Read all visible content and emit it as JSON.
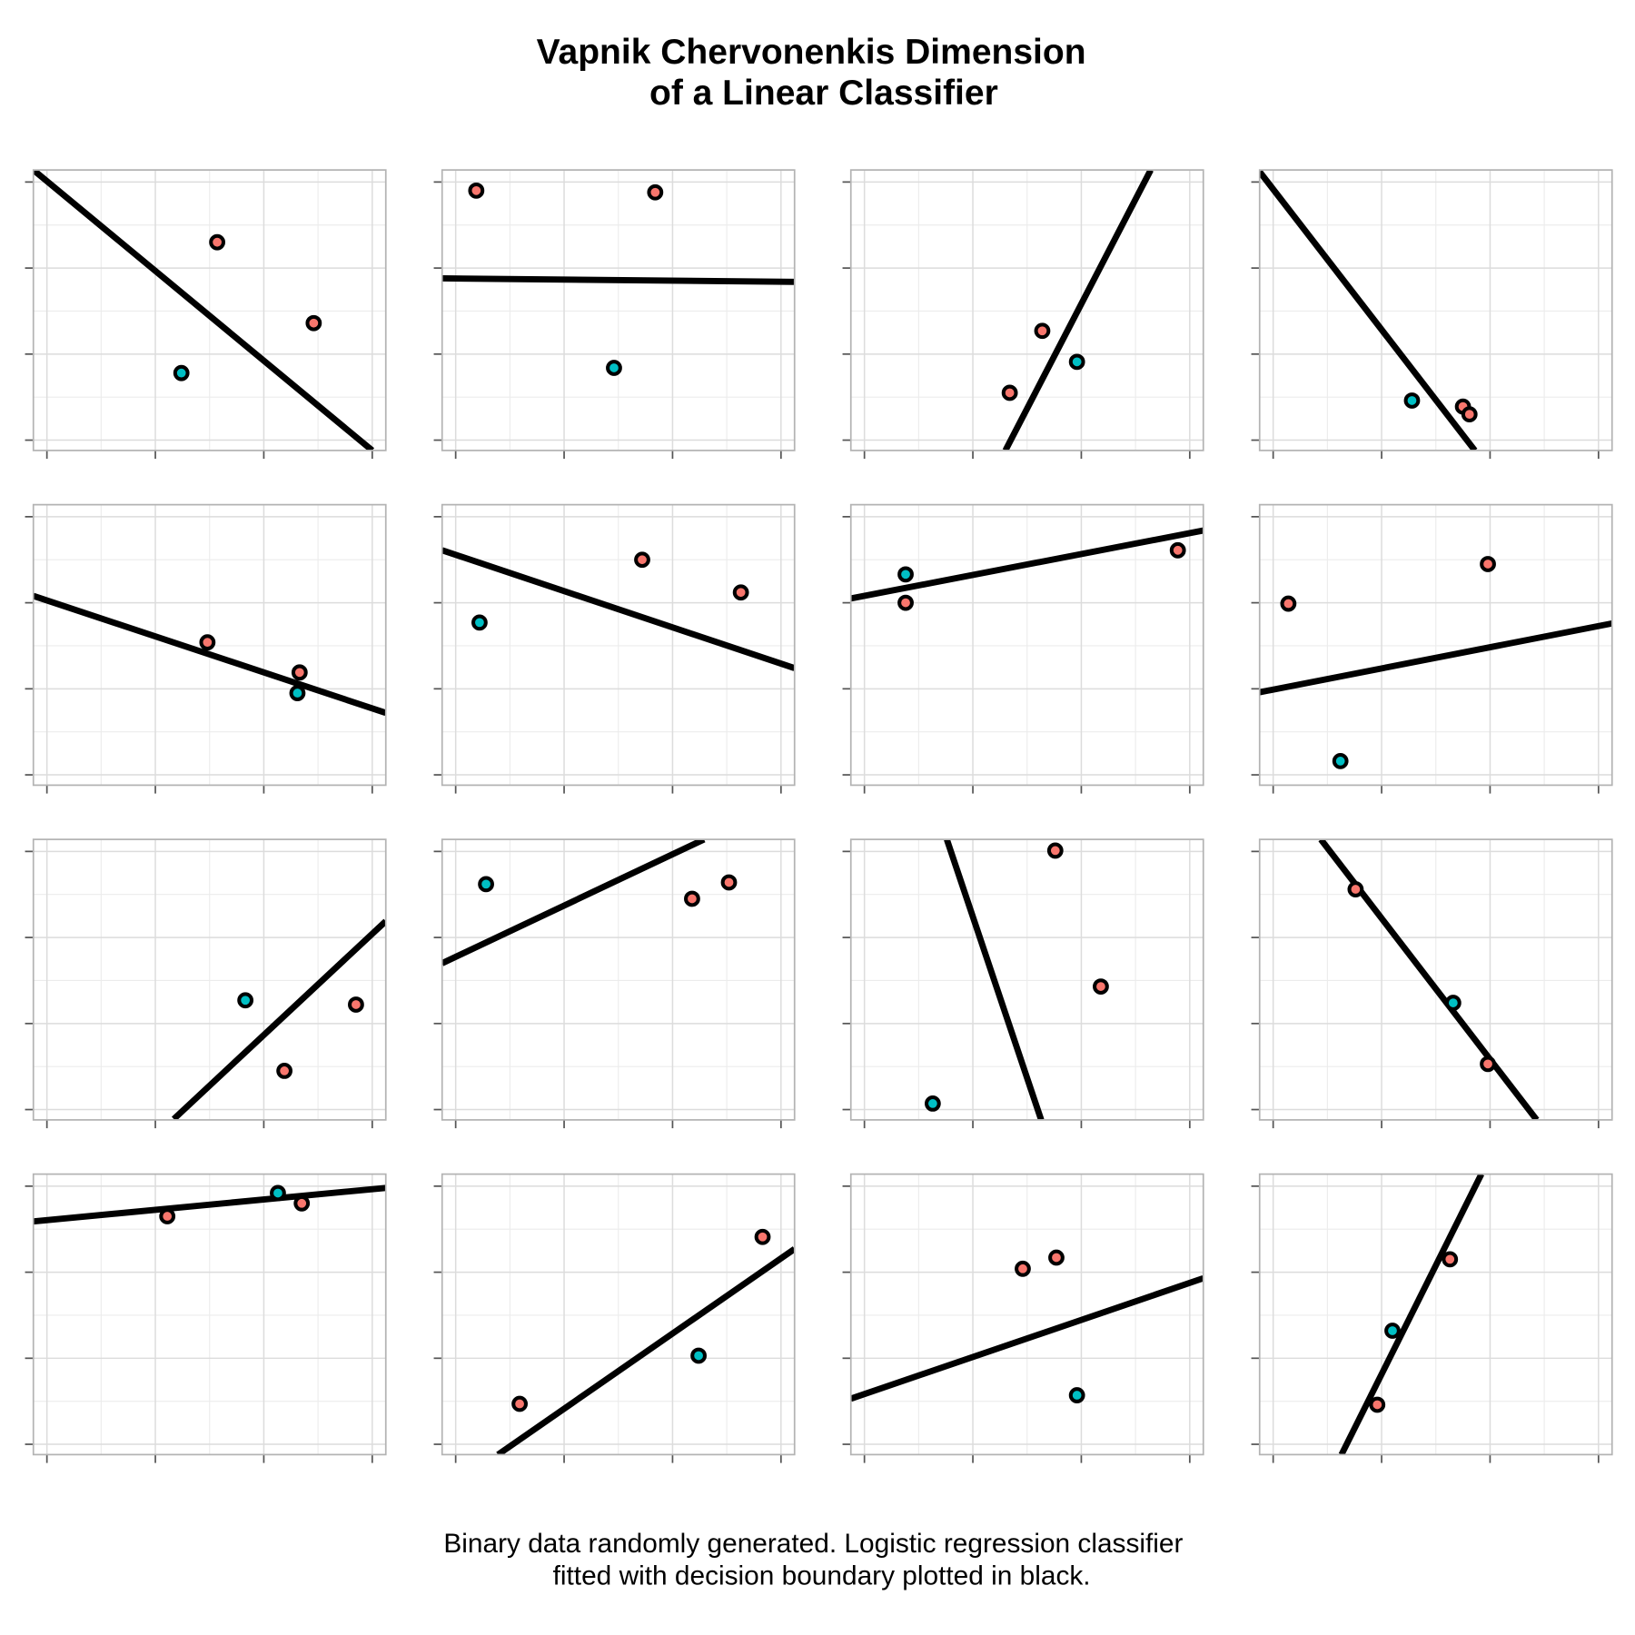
{
  "title": [
    "Vapnik Chervonenkis Dimension",
    "of a Linear Classifier"
  ],
  "caption": [
    "Binary data randomly generated. Logistic regression classifier",
    "fitted with decision boundary plotted in black."
  ],
  "chart_data": [
    {
      "type": "scatter",
      "x": [
        1.57,
        2.46,
        1.24
      ],
      "y": [
        2.3,
        1.36,
        0.78
      ],
      "colors": [
        "#f8766d",
        "#f8766d",
        "#00bfc4"
      ],
      "boundary": {
        "x": [
          -0.125,
          3.0
        ],
        "y": [
          3.14,
          -0.12
        ]
      },
      "xlim": [
        -0.125,
        3.125
      ],
      "ylim": [
        -0.12,
        3.14
      ],
      "xticks": [
        0,
        1,
        2,
        3
      ],
      "yticks": [
        0,
        1,
        2,
        3
      ],
      "grid": true
    },
    {
      "type": "scatter",
      "x": [
        0.19,
        1.84,
        1.46
      ],
      "y": [
        2.9,
        2.88,
        0.84
      ],
      "colors": [
        "#f8766d",
        "#f8766d",
        "#00bfc4"
      ],
      "boundary": {
        "x": [
          -0.125,
          3.125
        ],
        "y": [
          1.88,
          1.84
        ]
      },
      "xlim": [
        -0.125,
        3.125
      ],
      "ylim": [
        -0.12,
        3.14
      ],
      "xticks": [
        0,
        1,
        2,
        3
      ],
      "yticks": [
        0,
        1,
        2,
        3
      ],
      "grid": true
    },
    {
      "type": "scatter",
      "x": [
        1.64,
        1.34,
        1.96
      ],
      "y": [
        1.27,
        0.55,
        0.91
      ],
      "colors": [
        "#f8766d",
        "#f8766d",
        "#00bfc4"
      ],
      "boundary": {
        "x": [
          1.3,
          2.64
        ],
        "y": [
          -0.12,
          3.14
        ]
      },
      "xlim": [
        -0.125,
        3.125
      ],
      "ylim": [
        -0.12,
        3.14
      ],
      "xticks": [
        0,
        1,
        2,
        3
      ],
      "yticks": [
        0,
        1,
        2,
        3
      ],
      "grid": true
    },
    {
      "type": "scatter",
      "x": [
        1.28,
        1.75,
        1.81
      ],
      "y": [
        0.46,
        0.39,
        0.3
      ],
      "colors": [
        "#00bfc4",
        "#f8766d",
        "#f8766d"
      ],
      "boundary": {
        "x": [
          -0.125,
          1.86
        ],
        "y": [
          3.12,
          -0.12
        ]
      },
      "xlim": [
        -0.125,
        3.125
      ],
      "ylim": [
        -0.12,
        3.14
      ],
      "xticks": [
        0,
        1,
        2,
        3
      ],
      "yticks": [
        0,
        1,
        2,
        3
      ],
      "grid": true
    },
    {
      "type": "scatter",
      "x": [
        1.48,
        2.33,
        2.31
      ],
      "y": [
        1.54,
        1.19,
        0.95
      ],
      "colors": [
        "#f8766d",
        "#f8766d",
        "#00bfc4"
      ],
      "boundary": {
        "x": [
          -0.125,
          3.125
        ],
        "y": [
          2.08,
          0.72
        ]
      },
      "xlim": [
        -0.125,
        3.125
      ],
      "ylim": [
        -0.12,
        3.14
      ],
      "xticks": [
        0,
        1,
        2,
        3
      ],
      "yticks": [
        0,
        1,
        2,
        3
      ],
      "grid": true
    },
    {
      "type": "scatter",
      "x": [
        1.72,
        2.63,
        0.22
      ],
      "y": [
        2.5,
        2.12,
        1.77
      ],
      "colors": [
        "#f8766d",
        "#f8766d",
        "#00bfc4"
      ],
      "boundary": {
        "x": [
          -0.125,
          3.125
        ],
        "y": [
          2.61,
          1.24
        ]
      },
      "xlim": [
        -0.125,
        3.125
      ],
      "ylim": [
        -0.12,
        3.14
      ],
      "xticks": [
        0,
        1,
        2,
        3
      ],
      "yticks": [
        0,
        1,
        2,
        3
      ],
      "grid": true
    },
    {
      "type": "scatter",
      "x": [
        2.89,
        0.38,
        0.38
      ],
      "y": [
        2.61,
        2.0,
        2.33
      ],
      "colors": [
        "#f8766d",
        "#f8766d",
        "#00bfc4"
      ],
      "boundary": {
        "x": [
          -0.125,
          3.125
        ],
        "y": [
          2.05,
          2.84
        ]
      },
      "xlim": [
        -0.125,
        3.125
      ],
      "ylim": [
        -0.12,
        3.14
      ],
      "xticks": [
        0,
        1,
        2,
        3
      ],
      "yticks": [
        0,
        1,
        2,
        3
      ],
      "grid": true
    },
    {
      "type": "scatter",
      "x": [
        0.14,
        1.98,
        0.62
      ],
      "y": [
        1.99,
        2.45,
        0.16
      ],
      "colors": [
        "#f8766d",
        "#f8766d",
        "#00bfc4"
      ],
      "boundary": {
        "x": [
          -0.125,
          3.125
        ],
        "y": [
          0.96,
          1.76
        ]
      },
      "xlim": [
        -0.125,
        3.125
      ],
      "ylim": [
        -0.12,
        3.14
      ],
      "xticks": [
        0,
        1,
        2,
        3
      ],
      "yticks": [
        0,
        1,
        2,
        3
      ],
      "grid": true
    },
    {
      "type": "scatter",
      "x": [
        1.83,
        2.85,
        2.19
      ],
      "y": [
        1.27,
        1.22,
        0.45
      ],
      "colors": [
        "#00bfc4",
        "#f8766d",
        "#f8766d"
      ],
      "boundary": {
        "x": [
          1.17,
          3.125
        ],
        "y": [
          -0.11,
          2.19
        ]
      },
      "xlim": [
        -0.125,
        3.125
      ],
      "ylim": [
        -0.12,
        3.14
      ],
      "xticks": [
        0,
        1,
        2,
        3
      ],
      "yticks": [
        0,
        1,
        2,
        3
      ],
      "grid": true
    },
    {
      "type": "scatter",
      "x": [
        0.28,
        2.18,
        2.52
      ],
      "y": [
        2.62,
        2.45,
        2.64
      ],
      "colors": [
        "#00bfc4",
        "#f8766d",
        "#f8766d"
      ],
      "boundary": {
        "x": [
          -0.125,
          2.29
        ],
        "y": [
          1.7,
          3.14
        ]
      },
      "xlim": [
        -0.125,
        3.125
      ],
      "ylim": [
        -0.12,
        3.14
      ],
      "xticks": [
        0,
        1,
        2,
        3
      ],
      "yticks": [
        0,
        1,
        2,
        3
      ],
      "grid": true
    },
    {
      "type": "scatter",
      "x": [
        1.76,
        2.18,
        0.63
      ],
      "y": [
        3.01,
        1.43,
        0.07
      ],
      "colors": [
        "#f8766d",
        "#f8766d",
        "#00bfc4"
      ],
      "boundary": {
        "x": [
          0.76,
          1.63
        ],
        "y": [
          3.14,
          -0.12
        ]
      },
      "xlim": [
        -0.125,
        3.125
      ],
      "ylim": [
        -0.12,
        3.14
      ],
      "xticks": [
        0,
        1,
        2,
        3
      ],
      "yticks": [
        0,
        1,
        2,
        3
      ],
      "grid": true
    },
    {
      "type": "scatter",
      "x": [
        0.76,
        1.66,
        1.98
      ],
      "y": [
        2.56,
        1.24,
        0.53
      ],
      "colors": [
        "#f8766d",
        "#00bfc4",
        "#f8766d"
      ],
      "boundary": {
        "x": [
          0.44,
          2.43
        ],
        "y": [
          3.14,
          -0.12
        ]
      },
      "xlim": [
        -0.125,
        3.125
      ],
      "ylim": [
        -0.12,
        3.14
      ],
      "xticks": [
        0,
        1,
        2,
        3
      ],
      "yticks": [
        0,
        1,
        2,
        3
      ],
      "grid": true
    },
    {
      "type": "scatter",
      "x": [
        1.11,
        2.13,
        2.35
      ],
      "y": [
        2.65,
        2.92,
        2.8
      ],
      "colors": [
        "#f8766d",
        "#00bfc4",
        "#f8766d"
      ],
      "boundary": {
        "x": [
          -0.125,
          3.125
        ],
        "y": [
          2.59,
          2.98
        ]
      },
      "xlim": [
        -0.125,
        3.125
      ],
      "ylim": [
        -0.12,
        3.14
      ],
      "xticks": [
        0,
        1,
        2,
        3
      ],
      "yticks": [
        0,
        1,
        2,
        3
      ],
      "grid": true
    },
    {
      "type": "scatter",
      "x": [
        2.83,
        2.24,
        0.59
      ],
      "y": [
        2.41,
        1.03,
        0.47
      ],
      "colors": [
        "#f8766d",
        "#00bfc4",
        "#f8766d"
      ],
      "boundary": {
        "x": [
          0.39,
          3.125
        ],
        "y": [
          -0.12,
          2.27
        ]
      },
      "xlim": [
        -0.125,
        3.125
      ],
      "ylim": [
        -0.12,
        3.14
      ],
      "xticks": [
        0,
        1,
        2,
        3
      ],
      "yticks": [
        0,
        1,
        2,
        3
      ],
      "grid": true
    },
    {
      "type": "scatter",
      "x": [
        1.46,
        1.77,
        1.96
      ],
      "y": [
        2.04,
        2.17,
        0.57
      ],
      "colors": [
        "#f8766d",
        "#f8766d",
        "#00bfc4"
      ],
      "boundary": {
        "x": [
          -0.125,
          3.125
        ],
        "y": [
          0.53,
          1.93
        ]
      },
      "xlim": [
        -0.125,
        3.125
      ],
      "ylim": [
        -0.12,
        3.14
      ],
      "xticks": [
        0,
        1,
        2,
        3
      ],
      "yticks": [
        0,
        1,
        2,
        3
      ],
      "grid": true
    },
    {
      "type": "scatter",
      "x": [
        1.63,
        1.1,
        0.96
      ],
      "y": [
        2.15,
        1.32,
        0.46
      ],
      "colors": [
        "#f8766d",
        "#00bfc4",
        "#f8766d"
      ],
      "boundary": {
        "x": [
          0.63,
          1.92
        ],
        "y": [
          -0.12,
          3.14
        ]
      },
      "xlim": [
        -0.125,
        3.125
      ],
      "ylim": [
        -0.12,
        3.14
      ],
      "xticks": [
        0,
        1,
        2,
        3
      ],
      "yticks": [
        0,
        1,
        2,
        3
      ],
      "grid": true
    }
  ]
}
